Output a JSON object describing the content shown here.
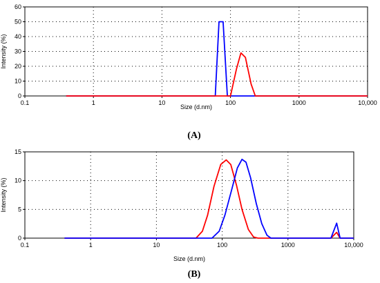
{
  "chart_data": [
    {
      "type": "line",
      "panel_label": "(A)",
      "xlabel": "Size (d.nm)",
      "ylabel": "Intensity (%)",
      "xscale": "log",
      "xlim": [
        0.1,
        10000
      ],
      "ylim": [
        0,
        60
      ],
      "x_ticks": [
        0.1,
        1,
        10,
        100,
        1000,
        10000
      ],
      "x_tick_labels": [
        "0.1",
        "1",
        "10",
        "100",
        "1000",
        "10,000"
      ],
      "y_ticks": [
        0,
        10,
        20,
        30,
        40,
        50,
        60
      ],
      "y_tick_labels": [
        "0",
        "10",
        "20",
        "30",
        "40",
        "50",
        "60"
      ],
      "grid": "dotted",
      "series": [
        {
          "color": "#0000ff",
          "points": [
            [
              0.4,
              0
            ],
            [
              60,
              0
            ],
            [
              68,
              50
            ],
            [
              78,
              50
            ],
            [
              90,
              0
            ],
            [
              10000,
              0
            ]
          ]
        },
        {
          "color": "#ff0000",
          "points": [
            [
              0.4,
              0
            ],
            [
              100,
              0
            ],
            [
              122,
              18
            ],
            [
              142,
              29
            ],
            [
              165,
              26
            ],
            [
              200,
              8
            ],
            [
              230,
              0
            ],
            [
              10000,
              0
            ]
          ]
        }
      ]
    },
    {
      "type": "line",
      "panel_label": "(B)",
      "xlabel": "Size (d.nm)",
      "ylabel": "Intensity (%)",
      "xscale": "log",
      "xlim": [
        0.1,
        10000
      ],
      "ylim": [
        0,
        15
      ],
      "x_ticks": [
        0.1,
        1,
        10,
        100,
        1000,
        10000
      ],
      "x_tick_labels": [
        "0.1",
        "1",
        "10",
        "100",
        "1000",
        "10,000"
      ],
      "y_ticks": [
        0,
        5,
        10,
        15
      ],
      "y_tick_labels": [
        "0",
        "5",
        "10",
        "15"
      ],
      "grid": "dotted",
      "series": [
        {
          "color": "#ff0000",
          "points": [
            [
              0.4,
              0
            ],
            [
              40,
              0
            ],
            [
              50,
              1.2
            ],
            [
              60,
              4
            ],
            [
              75,
              9
            ],
            [
              95,
              12.8
            ],
            [
              115,
              13.6
            ],
            [
              135,
              12.8
            ],
            [
              165,
              9.2
            ],
            [
              200,
              5
            ],
            [
              250,
              1.5
            ],
            [
              300,
              0.2
            ],
            [
              350,
              0
            ],
            [
              4500,
              0
            ],
            [
              5500,
              1.0
            ],
            [
              6200,
              0
            ],
            [
              10000,
              0
            ]
          ]
        },
        {
          "color": "#0000ff",
          "points": [
            [
              0.4,
              0
            ],
            [
              70,
              0
            ],
            [
              90,
              1.2
            ],
            [
              110,
              4
            ],
            [
              140,
              8.5
            ],
            [
              170,
              12.2
            ],
            [
              200,
              13.7
            ],
            [
              230,
              13.2
            ],
            [
              270,
              10.5
            ],
            [
              330,
              6
            ],
            [
              400,
              2.5
            ],
            [
              480,
              0.5
            ],
            [
              550,
              0
            ],
            [
              4500,
              0
            ],
            [
              5500,
              2.6
            ],
            [
              6200,
              0
            ],
            [
              10000,
              0
            ]
          ]
        }
      ]
    }
  ]
}
